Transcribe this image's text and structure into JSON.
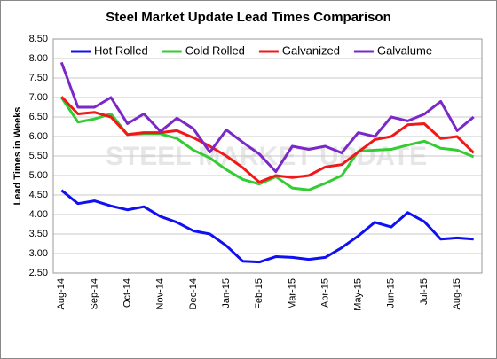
{
  "chart_data": {
    "type": "line",
    "title": "Steel Market Update Lead Times Comparison",
    "y_label": "Lead Times in Weeks",
    "watermark": "STEEL MARKET UPDATE",
    "categories": [
      "Aug-14",
      null,
      "Sep-14",
      null,
      "Oct-14",
      null,
      "Nov-14",
      null,
      "Dec-14",
      null,
      "Jan-15",
      null,
      "Feb-15",
      null,
      "Mar-15",
      null,
      "Apr-15",
      null,
      "May-15",
      null,
      "Jun-15",
      null,
      "Jul-15",
      null,
      "Aug-15",
      null
    ],
    "series": [
      {
        "name": "Hot Rolled",
        "color": "#1010f0",
        "values": [
          4.62,
          4.28,
          4.35,
          4.22,
          4.12,
          4.2,
          3.95,
          3.8,
          3.58,
          3.5,
          3.2,
          2.8,
          2.78,
          2.92,
          2.9,
          2.85,
          2.9,
          3.15,
          3.45,
          3.8,
          3.68,
          4.05,
          3.82,
          3.37,
          3.4,
          3.37
        ]
      },
      {
        "name": "Cold Rolled",
        "color": "#33cc33",
        "values": [
          7.0,
          6.37,
          6.45,
          6.58,
          6.05,
          6.07,
          6.07,
          5.95,
          5.65,
          5.45,
          5.15,
          4.9,
          4.78,
          4.97,
          4.68,
          4.63,
          4.8,
          5.0,
          5.62,
          5.65,
          5.67,
          5.78,
          5.88,
          5.7,
          5.65,
          5.48
        ]
      },
      {
        "name": "Galvanized",
        "color": "#f01818",
        "values": [
          7.02,
          6.58,
          6.62,
          6.5,
          6.05,
          6.1,
          6.1,
          6.15,
          5.97,
          5.75,
          5.5,
          5.2,
          4.83,
          5.0,
          4.95,
          5.0,
          5.22,
          5.28,
          5.6,
          5.92,
          6.0,
          6.3,
          6.33,
          5.95,
          6.0,
          5.58
        ]
      },
      {
        "name": "Galvalume",
        "color": "#7a28c8",
        "values": [
          7.9,
          6.75,
          6.75,
          7.0,
          6.33,
          6.58,
          6.13,
          6.47,
          6.2,
          5.6,
          6.17,
          5.85,
          5.55,
          5.1,
          5.75,
          5.67,
          5.75,
          5.58,
          6.1,
          6.0,
          6.5,
          6.4,
          6.57,
          6.9,
          6.15,
          6.5
        ]
      }
    ],
    "ylim": [
      2.5,
      8.5
    ],
    "yticks": [
      {
        "value": 2.5,
        "label": "2.50"
      },
      {
        "value": 3,
        "label": "3.00"
      },
      {
        "value": 3.5,
        "label": "3.50"
      },
      {
        "value": 4,
        "label": "4.00"
      },
      {
        "value": 4.5,
        "label": "4.50"
      },
      {
        "value": 5,
        "label": "5.00"
      },
      {
        "value": 5.5,
        "label": "5.50"
      },
      {
        "value": 6,
        "label": "6.00"
      },
      {
        "value": 6.5,
        "label": "6.50"
      },
      {
        "value": 7,
        "label": "7.00"
      },
      {
        "value": 7.5,
        "label": "7.50"
      },
      {
        "value": 8,
        "label": "8.00"
      },
      {
        "value": 8.5,
        "label": "8.50"
      }
    ],
    "grid": true,
    "legend": "top"
  }
}
